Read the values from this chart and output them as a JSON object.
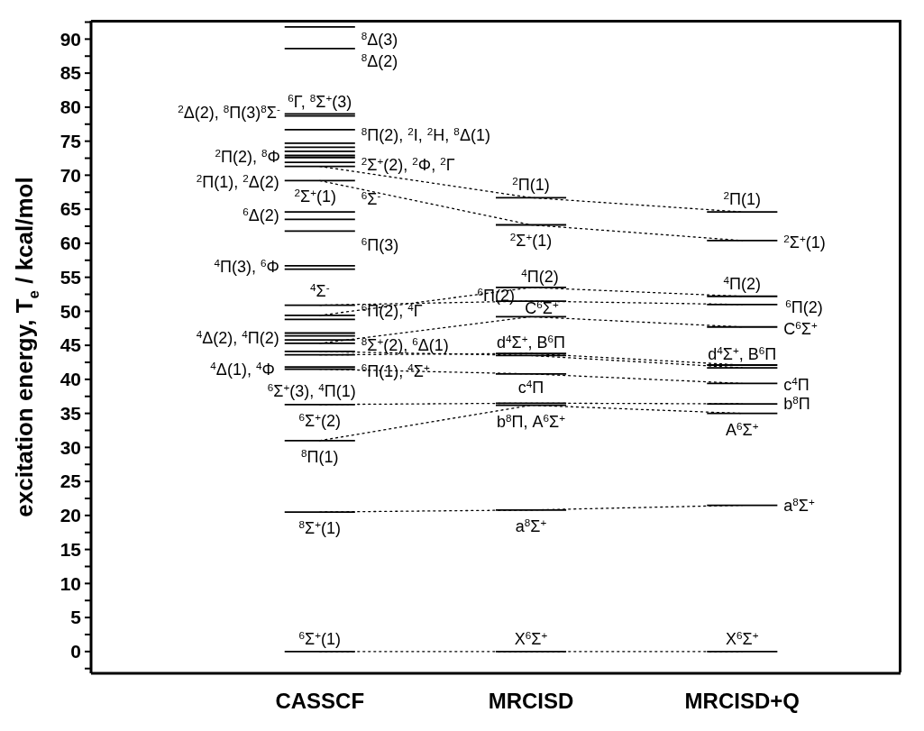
{
  "chart_data": {
    "type": "line",
    "line_style": "solid",
    "ylabel": "excitation energy, T$_{e}$ / kcal/mol",
    "categories": [
      null,
      null,
      null,
      null,
      null,
      null,
      "CASSCF",
      null,
      null,
      null,
      null,
      null,
      "MRCISD",
      null,
      null,
      null,
      null,
      null,
      "MRCISD+Q",
      null,
      null,
      null,
      null
    ],
    "ylim": [
      -3.2,
      92.7
    ],
    "yticks": [
      {
        "value": -2.5,
        "label": null
      },
      0,
      {
        "value": 2.5,
        "label": null
      },
      5,
      {
        "value": 7.5,
        "label": null
      },
      10,
      {
        "value": 12.5,
        "label": null
      },
      15,
      {
        "value": 17.5,
        "label": null
      },
      20,
      {
        "value": 22.5,
        "label": null
      },
      25,
      {
        "value": 27.5,
        "label": null
      },
      30,
      {
        "value": 32.5,
        "label": null
      },
      35,
      {
        "value": 37.5,
        "label": null
      },
      40,
      {
        "value": 42.5,
        "label": null
      },
      45,
      {
        "value": 47.5,
        "label": null
      },
      50,
      {
        "value": 52.5,
        "label": null
      },
      55,
      {
        "value": 57.5,
        "label": null
      },
      60,
      {
        "value": 62.5,
        "label": null
      },
      65,
      {
        "value": 67.5,
        "label": null
      },
      70,
      {
        "value": 72.5,
        "label": null
      },
      75,
      {
        "value": 77.5,
        "label": null
      },
      80,
      {
        "value": 82.5,
        "label": null
      },
      85,
      {
        "value": 87.5,
        "label": null
      },
      90,
      {
        "value": 92.5,
        "label": null
      }
    ],
    "series": [
      {
        "color": "#000000",
        "line_style": "dotted",
        "x": [
          "CASSCF",
          "MRCISD",
          "MRCISD+Q"
        ],
        "values": [
          71.3,
          66.7,
          64.6
        ]
      },
      {
        "color": "#000000",
        "line_style": "dotted",
        "x": [
          "CASSCF",
          "MRCISD",
          "MRCISD+Q"
        ],
        "values": [
          69.2,
          62.7,
          60.4
        ]
      },
      {
        "color": "#000000",
        "line_style": "dotted",
        "x": [
          "CASSCF",
          "MRCISD",
          "MRCISD+Q"
        ],
        "values": [
          49.4,
          53.5,
          52.2
        ]
      },
      {
        "color": "#000000",
        "line_style": "dotted",
        "x": [
          "CASSCF",
          "MRCISD",
          "MRCISD+Q"
        ],
        "values": [
          50.9,
          51.5,
          51.0
        ]
      },
      {
        "color": "#000000",
        "line_style": "dotted",
        "x": [
          "CASSCF",
          "MRCISD",
          "MRCISD+Q"
        ],
        "values": [
          45.3,
          49.2,
          47.7
        ]
      },
      {
        "color": "#000000",
        "line_style": "dotted",
        "x": [
          "CASSCF",
          "MRCISD",
          "MRCISD+Q"
        ],
        "values": [
          43.6,
          43.8,
          42.1
        ]
      },
      {
        "color": "#000000",
        "line_style": "dotted",
        "x": [
          "CASSCF",
          "MRCISD",
          "MRCISD+Q"
        ],
        "values": [
          44.1,
          43.5,
          41.7
        ]
      },
      {
        "color": "#000000",
        "line_style": "dotted",
        "x": [
          "CASSCF",
          "MRCISD",
          "MRCISD+Q"
        ],
        "values": [
          41.5,
          40.8,
          39.4
        ]
      },
      {
        "color": "#000000",
        "line_style": "dotted",
        "x": [
          "CASSCF",
          "MRCISD",
          "MRCISD+Q"
        ],
        "values": [
          36.3,
          36.5,
          36.4
        ]
      },
      {
        "color": "#000000",
        "line_style": "dotted",
        "x": [
          "CASSCF",
          "MRCISD",
          "MRCISD+Q"
        ],
        "values": [
          31.0,
          36.2,
          35.0
        ]
      },
      {
        "color": "#000000",
        "line_style": "dotted",
        "x": [
          "CASSCF",
          "MRCISD",
          "MRCISD+Q"
        ],
        "values": [
          20.5,
          20.8,
          21.5
        ]
      },
      {
        "color": "#000000",
        "line_style": "dotted",
        "x": [
          "CASSCF",
          "MRCISD",
          "MRCISD+Q"
        ],
        "values": [
          0,
          0,
          0
        ]
      },
      {
        "color": "#000000",
        "values": [
          null,
          null,
          null,
          null,
          null,
          91.8,
          91.8,
          91.8,
          null,
          null,
          null,
          null,
          null,
          null,
          null,
          null,
          null,
          null,
          null,
          null,
          null,
          null,
          null
        ]
      },
      {
        "color": "#000000",
        "values": [
          null,
          null,
          null,
          null,
          null,
          88.6,
          88.6,
          88.6,
          null,
          null,
          null,
          null,
          null,
          null,
          null,
          null,
          null,
          null,
          null,
          null,
          null,
          null,
          null
        ]
      },
      {
        "color": "#000000",
        "values": [
          null,
          null,
          null,
          null,
          null,
          79.0,
          79.0,
          79.0,
          null,
          null,
          null,
          null,
          null,
          null,
          null,
          null,
          null,
          null,
          null,
          null,
          null,
          null,
          null
        ]
      },
      {
        "color": "#000000",
        "values": [
          null,
          null,
          null,
          null,
          null,
          78.7,
          78.7,
          78.7,
          null,
          null,
          null,
          null,
          null,
          null,
          null,
          null,
          null,
          null,
          null,
          null,
          null,
          null,
          null
        ]
      },
      {
        "color": "#000000",
        "values": [
          null,
          null,
          null,
          null,
          null,
          76.7,
          76.7,
          76.7,
          null,
          null,
          null,
          null,
          null,
          null,
          null,
          null,
          null,
          null,
          null,
          null,
          null,
          null,
          null
        ]
      },
      {
        "color": "#000000",
        "values": [
          null,
          null,
          null,
          null,
          null,
          74.7,
          74.7,
          74.7,
          null,
          null,
          null,
          null,
          null,
          null,
          null,
          null,
          null,
          null,
          null,
          null,
          null,
          null,
          null
        ]
      },
      {
        "color": "#000000",
        "values": [
          null,
          null,
          null,
          null,
          null,
          74.1,
          74.1,
          74.1,
          null,
          null,
          null,
          null,
          null,
          null,
          null,
          null,
          null,
          null,
          null,
          null,
          null,
          null,
          null
        ]
      },
      {
        "color": "#000000",
        "values": [
          null,
          null,
          null,
          null,
          null,
          73.5,
          73.5,
          73.5,
          null,
          null,
          null,
          null,
          null,
          null,
          null,
          null,
          null,
          null,
          null,
          null,
          null,
          null,
          null
        ]
      },
      {
        "color": "#000000",
        "values": [
          null,
          null,
          null,
          null,
          null,
          72.9,
          72.9,
          72.9,
          null,
          null,
          null,
          null,
          null,
          null,
          null,
          null,
          null,
          null,
          null,
          null,
          null,
          null,
          null
        ]
      },
      {
        "color": "#000000",
        "values": [
          null,
          null,
          null,
          null,
          null,
          72.6,
          72.6,
          72.6,
          null,
          null,
          null,
          null,
          null,
          null,
          null,
          null,
          null,
          null,
          null,
          null,
          null,
          null,
          null
        ]
      },
      {
        "color": "#000000",
        "values": [
          null,
          null,
          null,
          null,
          null,
          71.9,
          71.9,
          71.9,
          null,
          null,
          null,
          null,
          null,
          null,
          null,
          null,
          null,
          null,
          null,
          null,
          null,
          null,
          null
        ]
      },
      {
        "color": "#000000",
        "values": [
          null,
          null,
          null,
          null,
          null,
          71.3,
          71.3,
          71.3,
          null,
          null,
          null,
          null,
          null,
          null,
          null,
          null,
          null,
          null,
          null,
          null,
          null,
          null,
          null
        ]
      },
      {
        "color": "#000000",
        "values": [
          null,
          null,
          null,
          null,
          null,
          69.2,
          69.2,
          69.2,
          null,
          null,
          null,
          null,
          null,
          null,
          null,
          null,
          null,
          null,
          null,
          null,
          null,
          null,
          null
        ]
      },
      {
        "color": "#000000",
        "values": [
          null,
          null,
          null,
          null,
          null,
          64.6,
          64.6,
          64.6,
          null,
          null,
          null,
          null,
          null,
          null,
          null,
          null,
          null,
          null,
          null,
          null,
          null,
          null,
          null
        ]
      },
      {
        "color": "#000000",
        "values": [
          null,
          null,
          null,
          null,
          null,
          63.5,
          63.5,
          63.5,
          null,
          null,
          null,
          null,
          null,
          null,
          null,
          null,
          null,
          null,
          null,
          null,
          null,
          null,
          null
        ]
      },
      {
        "color": "#000000",
        "values": [
          null,
          null,
          null,
          null,
          null,
          61.8,
          61.8,
          61.8,
          null,
          null,
          null,
          null,
          null,
          null,
          null,
          null,
          null,
          null,
          null,
          null,
          null,
          null,
          null
        ]
      },
      {
        "color": "#000000",
        "values": [
          null,
          null,
          null,
          null,
          null,
          56.7,
          56.7,
          56.7,
          null,
          null,
          null,
          null,
          null,
          null,
          null,
          null,
          null,
          null,
          null,
          null,
          null,
          null,
          null
        ]
      },
      {
        "color": "#000000",
        "values": [
          null,
          null,
          null,
          null,
          null,
          56.2,
          56.2,
          56.2,
          null,
          null,
          null,
          null,
          null,
          null,
          null,
          null,
          null,
          null,
          null,
          null,
          null,
          null,
          null
        ]
      },
      {
        "color": "#000000",
        "values": [
          null,
          null,
          null,
          null,
          null,
          50.9,
          50.9,
          50.9,
          null,
          null,
          null,
          null,
          null,
          null,
          null,
          null,
          null,
          null,
          null,
          null,
          null,
          null,
          null
        ]
      },
      {
        "color": "#000000",
        "values": [
          null,
          null,
          null,
          null,
          null,
          49.4,
          49.4,
          49.4,
          null,
          null,
          null,
          null,
          null,
          null,
          null,
          null,
          null,
          null,
          null,
          null,
          null,
          null,
          null
        ]
      },
      {
        "color": "#000000",
        "values": [
          null,
          null,
          null,
          null,
          null,
          48.8,
          48.8,
          48.8,
          null,
          null,
          null,
          null,
          null,
          null,
          null,
          null,
          null,
          null,
          null,
          null,
          null,
          null,
          null
        ]
      },
      {
        "color": "#000000",
        "values": [
          null,
          null,
          null,
          null,
          null,
          46.8,
          46.8,
          46.8,
          null,
          null,
          null,
          null,
          null,
          null,
          null,
          null,
          null,
          null,
          null,
          null,
          null,
          null,
          null
        ]
      },
      {
        "color": "#000000",
        "values": [
          null,
          null,
          null,
          null,
          null,
          46.4,
          46.4,
          46.4,
          null,
          null,
          null,
          null,
          null,
          null,
          null,
          null,
          null,
          null,
          null,
          null,
          null,
          null,
          null
        ]
      },
      {
        "color": "#000000",
        "values": [
          null,
          null,
          null,
          null,
          null,
          45.8,
          45.8,
          45.8,
          null,
          null,
          null,
          null,
          null,
          null,
          null,
          null,
          null,
          null,
          null,
          null,
          null,
          null,
          null
        ]
      },
      {
        "color": "#000000",
        "values": [
          null,
          null,
          null,
          null,
          null,
          45.3,
          45.3,
          45.3,
          null,
          null,
          null,
          null,
          null,
          null,
          null,
          null,
          null,
          null,
          null,
          null,
          null,
          null,
          null
        ]
      },
      {
        "color": "#000000",
        "values": [
          null,
          null,
          null,
          null,
          null,
          44.1,
          44.1,
          44.1,
          null,
          null,
          null,
          null,
          null,
          null,
          null,
          null,
          null,
          null,
          null,
          null,
          null,
          null,
          null
        ]
      },
      {
        "color": "#000000",
        "values": [
          null,
          null,
          null,
          null,
          null,
          43.6,
          43.6,
          43.6,
          null,
          null,
          null,
          null,
          null,
          null,
          null,
          null,
          null,
          null,
          null,
          null,
          null,
          null,
          null
        ]
      },
      {
        "color": "#000000",
        "values": [
          null,
          null,
          null,
          null,
          null,
          41.8,
          41.8,
          41.8,
          null,
          null,
          null,
          null,
          null,
          null,
          null,
          null,
          null,
          null,
          null,
          null,
          null,
          null,
          null
        ]
      },
      {
        "color": "#000000",
        "values": [
          null,
          null,
          null,
          null,
          null,
          41.5,
          41.5,
          41.5,
          null,
          null,
          null,
          null,
          null,
          null,
          null,
          null,
          null,
          null,
          null,
          null,
          null,
          null,
          null
        ]
      },
      {
        "color": "#000000",
        "values": [
          null,
          null,
          null,
          null,
          null,
          36.3,
          36.3,
          36.3,
          null,
          null,
          null,
          null,
          null,
          null,
          null,
          null,
          null,
          null,
          null,
          null,
          null,
          null,
          null
        ]
      },
      {
        "color": "#000000",
        "values": [
          null,
          null,
          null,
          null,
          null,
          31.0,
          31.0,
          31.0,
          null,
          null,
          null,
          null,
          null,
          null,
          null,
          null,
          null,
          null,
          null,
          null,
          null,
          null,
          null
        ]
      },
      {
        "color": "#000000",
        "values": [
          null,
          null,
          null,
          null,
          null,
          20.5,
          20.5,
          20.5,
          null,
          null,
          null,
          null,
          null,
          null,
          null,
          null,
          null,
          null,
          null,
          null,
          null,
          null,
          null
        ]
      },
      {
        "color": "#000000",
        "values": [
          null,
          null,
          null,
          null,
          null,
          0,
          0,
          0,
          null,
          null,
          null,
          null,
          null,
          null,
          null,
          null,
          null,
          null,
          null,
          null,
          null,
          null,
          null
        ]
      },
      {
        "color": "#000000",
        "values": [
          null,
          null,
          null,
          null,
          null,
          null,
          null,
          null,
          null,
          null,
          null,
          66.7,
          66.7,
          66.7,
          null,
          null,
          null,
          null,
          null,
          null,
          null,
          null,
          null
        ]
      },
      {
        "color": "#000000",
        "values": [
          null,
          null,
          null,
          null,
          null,
          null,
          null,
          null,
          null,
          null,
          null,
          62.7,
          62.7,
          62.7,
          null,
          null,
          null,
          null,
          null,
          null,
          null,
          null,
          null
        ]
      },
      {
        "color": "#000000",
        "values": [
          null,
          null,
          null,
          null,
          null,
          null,
          null,
          null,
          null,
          null,
          null,
          53.5,
          53.5,
          53.5,
          null,
          null,
          null,
          null,
          null,
          null,
          null,
          null,
          null
        ]
      },
      {
        "color": "#000000",
        "values": [
          null,
          null,
          null,
          null,
          null,
          null,
          null,
          null,
          null,
          null,
          null,
          51.5,
          51.5,
          51.5,
          null,
          null,
          null,
          null,
          null,
          null,
          null,
          null,
          null
        ]
      },
      {
        "color": "#000000",
        "values": [
          null,
          null,
          null,
          null,
          null,
          null,
          null,
          null,
          null,
          null,
          null,
          49.2,
          49.2,
          49.2,
          null,
          null,
          null,
          null,
          null,
          null,
          null,
          null,
          null
        ]
      },
      {
        "color": "#000000",
        "values": [
          null,
          null,
          null,
          null,
          null,
          null,
          null,
          null,
          null,
          null,
          null,
          43.8,
          43.8,
          43.8,
          null,
          null,
          null,
          null,
          null,
          null,
          null,
          null,
          null
        ]
      },
      {
        "color": "#000000",
        "values": [
          null,
          null,
          null,
          null,
          null,
          null,
          null,
          null,
          null,
          null,
          null,
          43.5,
          43.5,
          43.5,
          null,
          null,
          null,
          null,
          null,
          null,
          null,
          null,
          null
        ]
      },
      {
        "color": "#000000",
        "values": [
          null,
          null,
          null,
          null,
          null,
          null,
          null,
          null,
          null,
          null,
          null,
          40.8,
          40.8,
          40.8,
          null,
          null,
          null,
          null,
          null,
          null,
          null,
          null,
          null
        ]
      },
      {
        "color": "#000000",
        "values": [
          null,
          null,
          null,
          null,
          null,
          null,
          null,
          null,
          null,
          null,
          null,
          36.5,
          36.5,
          36.5,
          null,
          null,
          null,
          null,
          null,
          null,
          null,
          null,
          null
        ]
      },
      {
        "color": "#000000",
        "values": [
          null,
          null,
          null,
          null,
          null,
          null,
          null,
          null,
          null,
          null,
          null,
          36.2,
          36.2,
          36.2,
          null,
          null,
          null,
          null,
          null,
          null,
          null,
          null,
          null
        ]
      },
      {
        "color": "#000000",
        "values": [
          null,
          null,
          null,
          null,
          null,
          null,
          null,
          null,
          null,
          null,
          null,
          20.8,
          20.8,
          20.8,
          null,
          null,
          null,
          null,
          null,
          null,
          null,
          null,
          null
        ]
      },
      {
        "color": "#000000",
        "values": [
          null,
          null,
          null,
          null,
          null,
          null,
          null,
          null,
          null,
          null,
          null,
          0,
          0,
          0,
          null,
          null,
          null,
          null,
          null,
          null,
          null,
          null,
          null
        ]
      },
      {
        "color": "#000000",
        "values": [
          null,
          null,
          null,
          null,
          null,
          null,
          null,
          null,
          null,
          null,
          null,
          null,
          null,
          null,
          null,
          null,
          null,
          64.6,
          64.6,
          64.6,
          null,
          null,
          null
        ]
      },
      {
        "color": "#000000",
        "values": [
          null,
          null,
          null,
          null,
          null,
          null,
          null,
          null,
          null,
          null,
          null,
          null,
          null,
          null,
          null,
          null,
          null,
          60.4,
          60.4,
          60.4,
          null,
          null,
          null
        ]
      },
      {
        "color": "#000000",
        "values": [
          null,
          null,
          null,
          null,
          null,
          null,
          null,
          null,
          null,
          null,
          null,
          null,
          null,
          null,
          null,
          null,
          null,
          52.2,
          52.2,
          52.2,
          null,
          null,
          null
        ]
      },
      {
        "color": "#000000",
        "values": [
          null,
          null,
          null,
          null,
          null,
          null,
          null,
          null,
          null,
          null,
          null,
          null,
          null,
          null,
          null,
          null,
          null,
          51.0,
          51.0,
          51.0,
          null,
          null,
          null
        ]
      },
      {
        "color": "#000000",
        "values": [
          null,
          null,
          null,
          null,
          null,
          null,
          null,
          null,
          null,
          null,
          null,
          null,
          null,
          null,
          null,
          null,
          null,
          47.7,
          47.7,
          47.7,
          null,
          null,
          null
        ]
      },
      {
        "color": "#000000",
        "values": [
          null,
          null,
          null,
          null,
          null,
          null,
          null,
          null,
          null,
          null,
          null,
          null,
          null,
          null,
          null,
          null,
          null,
          42.1,
          42.1,
          42.1,
          null,
          null,
          null
        ]
      },
      {
        "color": "#000000",
        "values": [
          null,
          null,
          null,
          null,
          null,
          null,
          null,
          null,
          null,
          null,
          null,
          null,
          null,
          null,
          null,
          null,
          null,
          41.7,
          41.7,
          41.7,
          null,
          null,
          null
        ]
      },
      {
        "color": "#000000",
        "values": [
          null,
          null,
          null,
          null,
          null,
          null,
          null,
          null,
          null,
          null,
          null,
          null,
          null,
          null,
          null,
          null,
          null,
          39.4,
          39.4,
          39.4,
          null,
          null,
          null
        ]
      },
      {
        "color": "#000000",
        "values": [
          null,
          null,
          null,
          null,
          null,
          null,
          null,
          null,
          null,
          null,
          null,
          null,
          null,
          null,
          null,
          null,
          null,
          36.4,
          36.4,
          36.4,
          null,
          null,
          null
        ]
      },
      {
        "color": "#000000",
        "values": [
          null,
          null,
          null,
          null,
          null,
          null,
          null,
          null,
          null,
          null,
          null,
          null,
          null,
          null,
          null,
          null,
          null,
          35.0,
          35.0,
          35.0,
          null,
          null,
          null
        ]
      },
      {
        "color": "#000000",
        "values": [
          null,
          null,
          null,
          null,
          null,
          null,
          null,
          null,
          null,
          null,
          null,
          null,
          null,
          null,
          null,
          null,
          null,
          21.5,
          21.5,
          21.5,
          null,
          null,
          null
        ]
      },
      {
        "color": "#000000",
        "values": [
          null,
          null,
          null,
          null,
          null,
          null,
          null,
          null,
          null,
          null,
          null,
          null,
          null,
          null,
          null,
          null,
          null,
          0,
          0,
          0,
          null,
          null,
          null
        ]
      }
    ],
    "annotations": [
      {
        "text": "$^{8}$Δ(3)",
        "x": "CASSCF",
        "y": 91.8
      },
      {
        "text": "$^{8}$Δ(2)",
        "x": "CASSCF",
        "y": 88.6
      },
      {
        "text": "$^{6}$Γ, $^{8}$Σ$^{+}$(3)",
        "x": "CASSCF",
        "y": 79.0
      },
      {
        "text": "$^{2}$Δ(2), $^{8}$Π(3)$^{8}$Σ$^{-}$",
        "x": "CASSCF",
        "y": 78.7
      },
      {
        "text": "$^{8}$Π(2), $^{2}$I, $^{2}$H, $^{8}$Δ(1)",
        "x": "CASSCF",
        "y": 76.7
      },
      {
        "text": "$^{2}$Π(2), $^{8}$Φ",
        "x": "CASSCF",
        "y": 72.9
      },
      {
        "text": "$^{2}$Σ$^{+}$(2), $^{2}$Φ, $^{2}$Γ",
        "x": "CASSCF",
        "y": 72.6
      },
      {
        "text": "$^{2}$Π(1), $^{2}$Δ(2)",
        "x": "CASSCF",
        "y": 69.2
      },
      {
        "text": "$^{2}$Σ$^{+}$(1)",
        "x": "CASSCF",
        "y": 69.2
      },
      {
        "text": "$^{6}$Σ$^{-}$",
        "x": "CASSCF",
        "y": 64.6
      },
      {
        "text": "$^{6}$Δ(2)",
        "x": "CASSCF",
        "y": 63.5
      },
      {
        "text": "$^{6}$Π(3)",
        "x": "CASSCF",
        "y": 61.8
      },
      {
        "text": "$^{4}$Π(3), $^{6}$Φ",
        "x": "CASSCF",
        "y": 56.7
      },
      {
        "text": "$^{4}$Σ$^{-}$",
        "x": "CASSCF",
        "y": 50.9
      },
      {
        "text": "$^{6}$Π(2), $^{4}$Γ",
        "x": "CASSCF",
        "y": 50.9
      },
      {
        "text": "$^{4}$Δ(2), $^{4}$Π(2)",
        "x": "CASSCF",
        "y": 46.4
      },
      {
        "text": "$^{8}$Σ$^{+}$(2), $^{6}$Δ(1)",
        "x": "CASSCF",
        "y": 45.8
      },
      {
        "text": "$^{4}$Δ(1), $^{4}$Φ",
        "x": "CASSCF",
        "y": 43.6
      },
      {
        "text": "$^{6}$Π(1), $^{4}$Σ$^{+}$",
        "x": "CASSCF",
        "y": 41.8
      },
      {
        "text": "$^{6}$Σ$^{+}$(3), $^{4}$Π(1)",
        "x": "CASSCF",
        "y": 41.5
      },
      {
        "text": "$^{6}$Σ$^{+}$(2)",
        "x": "CASSCF",
        "y": 36.3
      },
      {
        "text": "$^{8}$Π(1)",
        "x": "CASSCF",
        "y": 31.0
      },
      {
        "text": "$^{8}$Σ$^{+}$(1)",
        "x": "CASSCF",
        "y": 20.5
      },
      {
        "text": "$^{6}$Σ$^{+}$(1)",
        "x": "CASSCF",
        "y": 0
      },
      {
        "text": "$^{2}$Π(1)",
        "x": "MRCISD",
        "y": 66.7
      },
      {
        "text": "$^{2}$Σ$^{+}$(1)",
        "x": "MRCISD",
        "y": 62.7
      },
      {
        "text": "$^{4}$Π(2)",
        "x": "MRCISD",
        "y": 53.5
      },
      {
        "text": "$^{6}$Π(2)",
        "x": "MRCISD",
        "y": 51.5
      },
      {
        "text": "C$^{6}$Σ$^{+}$",
        "x": "MRCISD",
        "y": 49.2
      },
      {
        "text": "d$^{4}$Σ$^{+}$, B$^{6}$Π",
        "x": "MRCISD",
        "y": 43.8
      },
      {
        "text": "c$^{4}$Π",
        "x": "MRCISD",
        "y": 40.8
      },
      {
        "text": "b$^{8}$Π, A$^{6}$Σ$^{+}$",
        "x": "MRCISD",
        "y": 36.2
      },
      {
        "text": "a$^{8}$Σ$^{+}$",
        "x": "MRCISD",
        "y": 20.8
      },
      {
        "text": "X$^{6}$Σ$^{+}$",
        "x": "MRCISD",
        "y": 0
      },
      {
        "text": "$^{2}$Π(1)",
        "x": "MRCISD+Q",
        "y": 64.6
      },
      {
        "text": "$^{2}$Σ$^{+}$(1)",
        "x": "MRCISD+Q",
        "y": 60.4
      },
      {
        "text": "$^{4}$Π(2)",
        "x": "MRCISD+Q",
        "y": 52.2
      },
      {
        "text": "$^{6}$Π(2)",
        "x": "MRCISD+Q",
        "y": 51.0
      },
      {
        "text": "C$^{6}$Σ$^{+}$",
        "x": "MRCISD+Q",
        "y": 47.7
      },
      {
        "text": "d$^{4}$Σ$^{+}$, B$^{6}$Π",
        "x": "MRCISD+Q",
        "y": 42.1
      },
      {
        "text": "c$^{4}$Π",
        "x": "MRCISD+Q",
        "y": 39.4
      },
      {
        "text": "b$^{8}$Π",
        "x": "MRCISD+Q",
        "y": 36.4
      },
      {
        "text": "A$^{6}$Σ$^{+}$",
        "x": "MRCISD+Q",
        "y": 35.0
      },
      {
        "text": "a$^{8}$Σ$^{+}$",
        "x": "MRCISD+Q",
        "y": 21.5
      },
      {
        "text": "X$^{6}$Σ$^{+}$",
        "x": "MRCISD+Q",
        "y": 0
      }
    ]
  }
}
